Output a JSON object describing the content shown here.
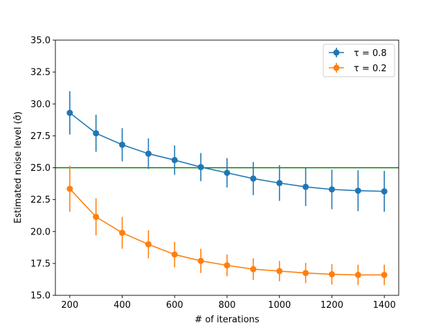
{
  "chart_data": {
    "type": "line",
    "title": "",
    "xlabel": "# of iterations",
    "ylabel": "Estimated noise level (σ̂)",
    "xlim": [
      145,
      1455
    ],
    "ylim": [
      15.0,
      35.0
    ],
    "x_ticks": [
      200,
      400,
      600,
      800,
      1000,
      1200,
      1400
    ],
    "x_tick_labels": [
      "200",
      "400",
      "600",
      "800",
      "1000",
      "1200",
      "1400"
    ],
    "y_ticks": [
      15.0,
      17.5,
      20.0,
      22.5,
      25.0,
      27.5,
      30.0,
      32.5,
      35.0
    ],
    "y_tick_labels": [
      "15.0",
      "17.5",
      "20.0",
      "22.5",
      "25.0",
      "27.5",
      "30.0",
      "32.5",
      "35.0"
    ],
    "grid": false,
    "legend_position": "top-right",
    "reference_line": {
      "y": 25.0,
      "color": "#008000"
    },
    "x": [
      200,
      300,
      400,
      500,
      600,
      700,
      800,
      900,
      1000,
      1100,
      1200,
      1300,
      1400
    ],
    "series": [
      {
        "name": "τ = 0.8",
        "color": "#1f77b4",
        "values": [
          29.3,
          27.7,
          26.8,
          26.1,
          25.6,
          25.05,
          24.6,
          24.15,
          23.8,
          23.5,
          23.3,
          23.2,
          23.15
        ],
        "errors": [
          1.7,
          1.45,
          1.3,
          1.2,
          1.15,
          1.1,
          1.15,
          1.3,
          1.4,
          1.5,
          1.55,
          1.6,
          1.6
        ]
      },
      {
        "name": "τ = 0.2",
        "color": "#ff7f0e",
        "values": [
          23.35,
          21.15,
          19.9,
          19.0,
          18.2,
          17.7,
          17.35,
          17.05,
          16.9,
          16.75,
          16.65,
          16.6,
          16.6
        ],
        "errors": [
          1.8,
          1.45,
          1.25,
          1.1,
          1.0,
          0.95,
          0.85,
          0.85,
          0.8,
          0.8,
          0.8,
          0.8,
          0.8
        ]
      }
    ]
  }
}
